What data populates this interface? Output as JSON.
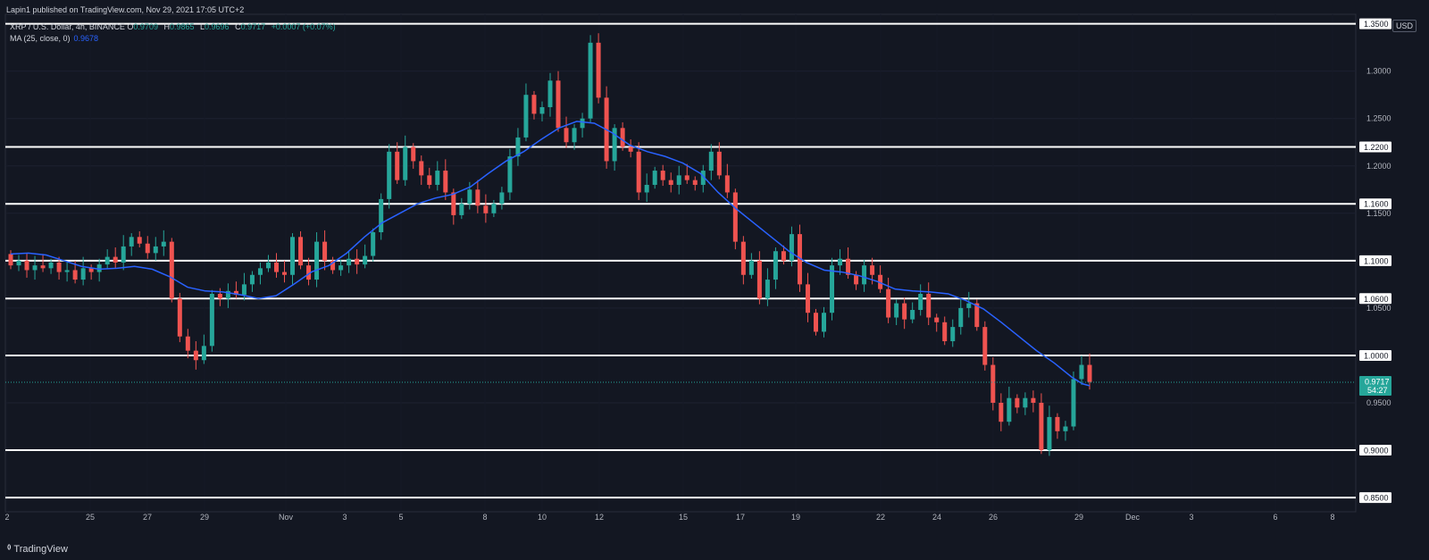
{
  "header": {
    "published_line": "Lapin1 published on TradingView.com, Nov 29, 2021 17:05 UTC+2"
  },
  "symbol": {
    "title": "XRP / U.S. Dollar, 4h, BINANCE",
    "o_label": "O",
    "o_value": "0.9709",
    "h_label": "H",
    "h_value": "0.9865",
    "l_label": "L",
    "l_value": "0.9696",
    "c_label": "C",
    "c_value": "0.9717",
    "change": "+0.0007 (+0.07%)"
  },
  "indicator": {
    "label": "MA (25, close, 0)",
    "value": "0.9678"
  },
  "currency": "USD",
  "branding": "TradingView",
  "colors": {
    "background": "#131722",
    "up": "#26a69a",
    "down": "#ef5350",
    "ma": "#2962ff",
    "level_line": "#ffffff",
    "price_badge": "#26a69a"
  },
  "chart_data": {
    "type": "candlestick",
    "interval": "4h",
    "y_range": [
      0.835,
      1.36
    ],
    "y_ticks": [
      "1.3000",
      "1.2500",
      "1.2000",
      "1.1500",
      "1.0500",
      "0.9500"
    ],
    "x_ticks": [
      "2",
      "25",
      "27",
      "29",
      "Nov",
      "3",
      "5",
      "8",
      "10",
      "12",
      "15",
      "17",
      "19",
      "22",
      "24",
      "26",
      "29",
      "Dec",
      "3",
      "6",
      "8"
    ],
    "horizontal_levels": [
      {
        "value": 1.35,
        "label": "1.3500"
      },
      {
        "value": 1.22,
        "label": "1.2200"
      },
      {
        "value": 1.16,
        "label": "1.1600"
      },
      {
        "value": 1.1,
        "label": "1.1000"
      },
      {
        "value": 1.06,
        "label": "1.0600"
      },
      {
        "value": 1.0,
        "label": "1.0000"
      },
      {
        "value": 0.9,
        "label": "0.9000"
      },
      {
        "value": 0.85,
        "label": "0.8500"
      }
    ],
    "current_price": {
      "value": 0.9717,
      "label": "0.9717",
      "countdown": "54:27"
    },
    "ma_series_name": "MA (25, close, 0)",
    "ma_path": [
      [
        0,
        1.107
      ],
      [
        20,
        1.108
      ],
      [
        40,
        1.106
      ],
      [
        60,
        1.1
      ],
      [
        80,
        1.094
      ],
      [
        100,
        1.091
      ],
      [
        120,
        1.092
      ],
      [
        140,
        1.094
      ],
      [
        160,
        1.091
      ],
      [
        180,
        1.083
      ],
      [
        200,
        1.072
      ],
      [
        220,
        1.068
      ],
      [
        240,
        1.067
      ],
      [
        260,
        1.064
      ],
      [
        280,
        1.06
      ],
      [
        300,
        1.063
      ],
      [
        320,
        1.075
      ],
      [
        340,
        1.088
      ],
      [
        360,
        1.095
      ],
      [
        380,
        1.108
      ],
      [
        400,
        1.125
      ],
      [
        420,
        1.14
      ],
      [
        440,
        1.15
      ],
      [
        460,
        1.16
      ],
      [
        480,
        1.166
      ],
      [
        500,
        1.17
      ],
      [
        520,
        1.178
      ],
      [
        540,
        1.192
      ],
      [
        560,
        1.205
      ],
      [
        580,
        1.215
      ],
      [
        600,
        1.228
      ],
      [
        620,
        1.24
      ],
      [
        640,
        1.247
      ],
      [
        660,
        1.245
      ],
      [
        680,
        1.235
      ],
      [
        700,
        1.222
      ],
      [
        720,
        1.215
      ],
      [
        740,
        1.21
      ],
      [
        760,
        1.203
      ],
      [
        780,
        1.192
      ],
      [
        800,
        1.172
      ],
      [
        820,
        1.155
      ],
      [
        840,
        1.14
      ],
      [
        860,
        1.125
      ],
      [
        880,
        1.11
      ],
      [
        900,
        1.098
      ],
      [
        920,
        1.09
      ],
      [
        940,
        1.088
      ],
      [
        960,
        1.084
      ],
      [
        980,
        1.078
      ],
      [
        1000,
        1.07
      ],
      [
        1020,
        1.068
      ],
      [
        1040,
        1.067
      ],
      [
        1060,
        1.065
      ],
      [
        1080,
        1.058
      ],
      [
        1100,
        1.049
      ],
      [
        1120,
        1.035
      ],
      [
        1140,
        1.02
      ],
      [
        1160,
        1.005
      ],
      [
        1180,
        0.992
      ],
      [
        1200,
        0.977
      ],
      [
        1212,
        0.97
      ],
      [
        1220,
        0.968
      ]
    ],
    "candles": [
      [
        1.107,
        1.095
      ],
      [
        1.095,
        1.1
      ],
      [
        1.1,
        1.09
      ],
      [
        1.09,
        1.095
      ],
      [
        1.095,
        1.092
      ],
      [
        1.092,
        1.098
      ],
      [
        1.098,
        1.088
      ],
      [
        1.088,
        1.09
      ],
      [
        1.09,
        1.08
      ],
      [
        1.08,
        1.092
      ],
      [
        1.092,
        1.088
      ],
      [
        1.088,
        1.096
      ],
      [
        1.096,
        1.104
      ],
      [
        1.104,
        1.098
      ],
      [
        1.098,
        1.115
      ],
      [
        1.115,
        1.125
      ],
      [
        1.125,
        1.118
      ],
      [
        1.118,
        1.108
      ],
      [
        1.108,
        1.115
      ],
      [
        1.115,
        1.12
      ],
      [
        1.12,
        1.06
      ],
      [
        1.06,
        1.02
      ],
      [
        1.02,
        1.005
      ],
      [
        1.005,
        0.995
      ],
      [
        0.995,
        1.01
      ],
      [
        1.01,
        1.065
      ],
      [
        1.065,
        1.06
      ],
      [
        1.06,
        1.068
      ],
      [
        1.068,
        1.064
      ],
      [
        1.064,
        1.075
      ],
      [
        1.075,
        1.085
      ],
      [
        1.085,
        1.092
      ],
      [
        1.092,
        1.098
      ],
      [
        1.098,
        1.088
      ],
      [
        1.088,
        1.085
      ],
      [
        1.085,
        1.125
      ],
      [
        1.125,
        1.095
      ],
      [
        1.095,
        1.08
      ],
      [
        1.08,
        1.12
      ],
      [
        1.12,
        1.1
      ],
      [
        1.1,
        1.09
      ],
      [
        1.09,
        1.095
      ],
      [
        1.095,
        1.102
      ],
      [
        1.102,
        1.096
      ],
      [
        1.096,
        1.105
      ],
      [
        1.105,
        1.13
      ],
      [
        1.13,
        1.165
      ],
      [
        1.165,
        1.215
      ],
      [
        1.215,
        1.185
      ],
      [
        1.185,
        1.22
      ],
      [
        1.22,
        1.205
      ],
      [
        1.205,
        1.19
      ],
      [
        1.19,
        1.18
      ],
      [
        1.18,
        1.195
      ],
      [
        1.195,
        1.172
      ],
      [
        1.172,
        1.148
      ],
      [
        1.148,
        1.16
      ],
      [
        1.16,
        1.175
      ],
      [
        1.175,
        1.158
      ],
      [
        1.158,
        1.15
      ],
      [
        1.15,
        1.16
      ],
      [
        1.16,
        1.172
      ],
      [
        1.172,
        1.21
      ],
      [
        1.21,
        1.23
      ],
      [
        1.23,
        1.275
      ],
      [
        1.275,
        1.255
      ],
      [
        1.255,
        1.262
      ],
      [
        1.262,
        1.29
      ],
      [
        1.29,
        1.24
      ],
      [
        1.24,
        1.225
      ],
      [
        1.225,
        1.24
      ],
      [
        1.24,
        1.25
      ],
      [
        1.25,
        1.33
      ],
      [
        1.33,
        1.272
      ],
      [
        1.272,
        1.205
      ],
      [
        1.205,
        1.24
      ],
      [
        1.24,
        1.22
      ],
      [
        1.22,
        1.215
      ],
      [
        1.215,
        1.172
      ],
      [
        1.172,
        1.18
      ],
      [
        1.18,
        1.195
      ],
      [
        1.195,
        1.185
      ],
      [
        1.185,
        1.18
      ],
      [
        1.18,
        1.19
      ],
      [
        1.19,
        1.185
      ],
      [
        1.185,
        1.18
      ],
      [
        1.18,
        1.195
      ],
      [
        1.195,
        1.215
      ],
      [
        1.215,
        1.19
      ],
      [
        1.19,
        1.172
      ],
      [
        1.172,
        1.12
      ],
      [
        1.12,
        1.085
      ],
      [
        1.085,
        1.1
      ],
      [
        1.1,
        1.06
      ],
      [
        1.06,
        1.08
      ],
      [
        1.08,
        1.11
      ],
      [
        1.11,
        1.1
      ],
      [
        1.1,
        1.128
      ],
      [
        1.128,
        1.075
      ],
      [
        1.075,
        1.045
      ],
      [
        1.045,
        1.025
      ],
      [
        1.025,
        1.045
      ],
      [
        1.045,
        1.095
      ],
      [
        1.095,
        1.102
      ],
      [
        1.102,
        1.085
      ],
      [
        1.085,
        1.075
      ],
      [
        1.075,
        1.095
      ],
      [
        1.095,
        1.085
      ],
      [
        1.085,
        1.07
      ],
      [
        1.07,
        1.04
      ],
      [
        1.04,
        1.055
      ],
      [
        1.055,
        1.038
      ],
      [
        1.038,
        1.048
      ],
      [
        1.048,
        1.065
      ],
      [
        1.065,
        1.04
      ],
      [
        1.04,
        1.035
      ],
      [
        1.035,
        1.015
      ],
      [
        1.015,
        1.03
      ],
      [
        1.03,
        1.05
      ],
      [
        1.05,
        1.055
      ],
      [
        1.055,
        1.03
      ],
      [
        1.03,
        0.99
      ],
      [
        0.99,
        0.95
      ],
      [
        0.95,
        0.93
      ],
      [
        0.93,
        0.955
      ],
      [
        0.955,
        0.945
      ],
      [
        0.945,
        0.955
      ],
      [
        0.955,
        0.95
      ],
      [
        0.95,
        0.9
      ],
      [
        0.9,
        0.935
      ],
      [
        0.935,
        0.92
      ],
      [
        0.92,
        0.925
      ],
      [
        0.925,
        0.975
      ],
      [
        0.975,
        0.99
      ],
      [
        0.99,
        0.972
      ]
    ]
  }
}
